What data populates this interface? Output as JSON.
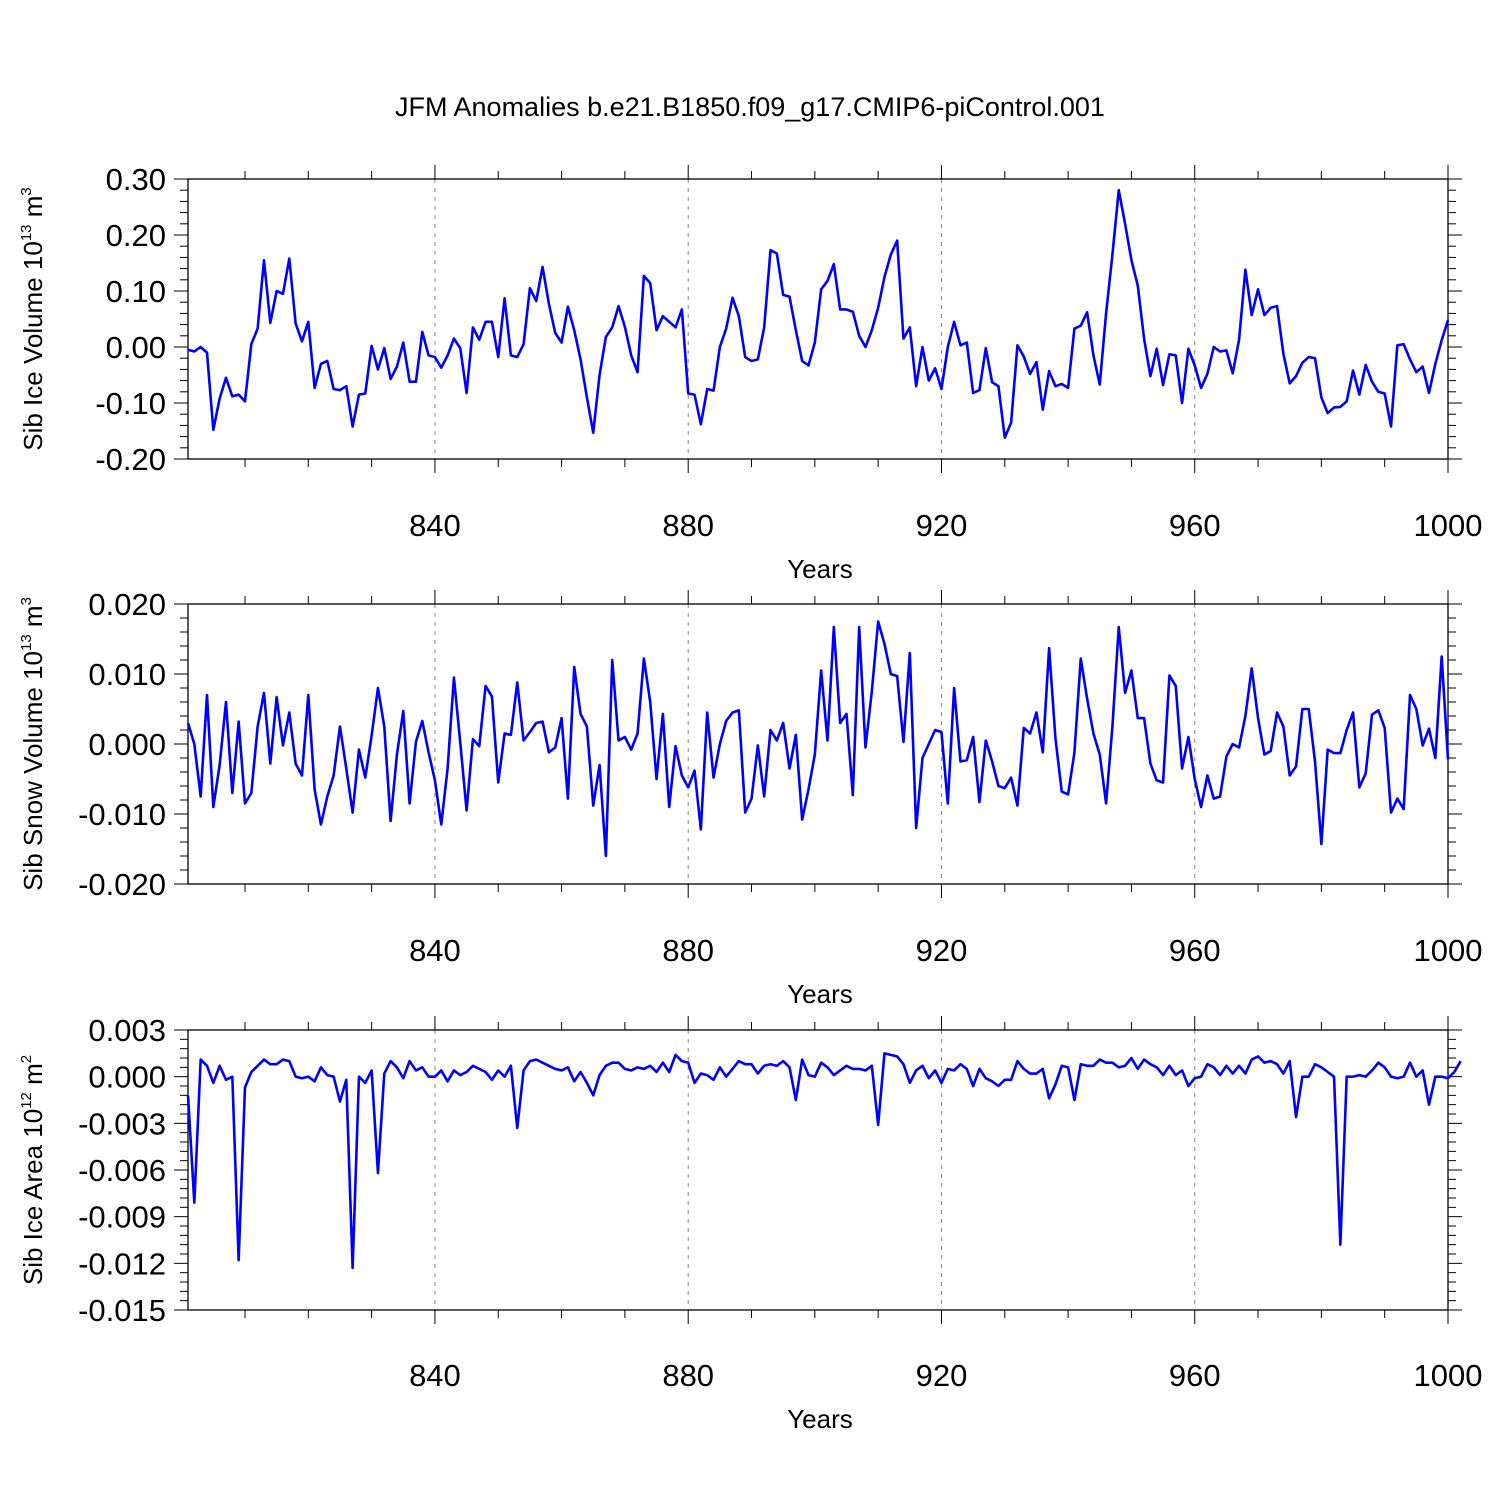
{
  "figure": {
    "title": "JFM Anomalies b.e21.B1850.f09_g17.CMIP6-piControl.001",
    "line_color": "#0000ff",
    "grid_color": "#888888"
  },
  "chart_data": [
    {
      "type": "line",
      "title": "",
      "xlabel": "Years",
      "ylabel_main": "Sib Ice Volume 10",
      "ylabel_exp": "13",
      "ylabel_unit": " m",
      "ylabel_unit_exp": "3",
      "xlim": [
        801,
        1000
      ],
      "ylim": [
        -0.2,
        0.3
      ],
      "x_start": 801,
      "x_ticks": [
        840,
        880,
        920,
        960,
        1000
      ],
      "y_ticks": [
        -0.2,
        -0.1,
        0.0,
        0.1,
        0.2,
        0.3
      ],
      "y_tick_labels": [
        "-0.20",
        "-0.10",
        "0.00",
        "0.10",
        "0.20",
        "0.30"
      ],
      "grid": "vertical dashed at labeled x ticks",
      "series": [
        {
          "values": [
            -0.005,
            -0.008,
            0.0,
            -0.01,
            -0.148,
            -0.092,
            -0.055,
            -0.088,
            -0.085,
            -0.097,
            0.005,
            0.033,
            0.155,
            0.043,
            0.1,
            0.095,
            0.158,
            0.042,
            0.01,
            0.045,
            -0.073,
            -0.03,
            -0.025,
            -0.075,
            -0.077,
            -0.07,
            -0.142,
            -0.085,
            -0.083,
            0.002,
            -0.04,
            -0.002,
            -0.057,
            -0.035,
            0.008,
            -0.062,
            -0.062,
            0.027,
            -0.015,
            -0.018,
            -0.037,
            -0.015,
            0.015,
            -0.002,
            -0.082,
            0.035,
            0.013,
            0.045,
            0.045,
            -0.018,
            0.087,
            -0.015,
            -0.018,
            0.005,
            0.105,
            0.082,
            0.143,
            0.077,
            0.025,
            0.008,
            0.072,
            0.03,
            -0.022,
            -0.09,
            -0.153,
            -0.05,
            0.018,
            0.035,
            0.073,
            0.036,
            -0.015,
            -0.045,
            0.127,
            0.114,
            0.03,
            0.055,
            0.045,
            0.035,
            0.067,
            -0.083,
            -0.085,
            -0.138,
            -0.075,
            -0.078,
            0.0,
            0.033,
            0.088,
            0.055,
            -0.018,
            -0.025,
            -0.022,
            0.035,
            0.173,
            0.167,
            0.093,
            0.09,
            0.03,
            -0.025,
            -0.033,
            0.008,
            0.103,
            0.118,
            0.148,
            0.067,
            0.067,
            0.063,
            0.02,
            0.0,
            0.03,
            0.07,
            0.125,
            0.165,
            0.19,
            0.015,
            0.035,
            -0.07,
            0.0,
            -0.06,
            -0.038,
            -0.075,
            0.0,
            0.045,
            0.003,
            0.008,
            -0.082,
            -0.077,
            -0.002,
            -0.063,
            -0.07,
            -0.162,
            -0.135,
            0.003,
            -0.017,
            -0.048,
            -0.027,
            -0.112,
            -0.043,
            -0.07,
            -0.066,
            -0.073,
            0.033,
            0.038,
            0.062,
            -0.015,
            -0.067,
            0.06,
            0.165,
            0.28,
            0.22,
            0.155,
            0.11,
            0.015,
            -0.052,
            -0.003,
            -0.068,
            -0.013,
            -0.015,
            -0.1,
            -0.003,
            -0.033,
            -0.073,
            -0.048,
            0.0,
            -0.008,
            -0.006,
            -0.047,
            0.013,
            0.138,
            0.057,
            0.103,
            0.057,
            0.07,
            0.073,
            -0.012,
            -0.065,
            -0.052,
            -0.028,
            -0.018,
            -0.02,
            -0.09,
            -0.118,
            -0.108,
            -0.107,
            -0.097,
            -0.042,
            -0.085,
            -0.032,
            -0.062,
            -0.08,
            -0.083,
            -0.142,
            0.003,
            0.005,
            -0.022,
            -0.045,
            -0.035,
            -0.082,
            -0.03,
            0.012,
            0.048
          ]
        }
      ]
    },
    {
      "type": "line",
      "title": "",
      "xlabel": "Years",
      "ylabel_main": "Sib Snow Volume 10",
      "ylabel_exp": "13",
      "ylabel_unit": " m",
      "ylabel_unit_exp": "3",
      "xlim": [
        801,
        1000
      ],
      "ylim": [
        -0.02,
        0.02
      ],
      "x_start": 801,
      "x_ticks": [
        840,
        880,
        920,
        960,
        1000
      ],
      "y_ticks": [
        -0.02,
        -0.01,
        0.0,
        0.01,
        0.02
      ],
      "y_tick_labels": [
        "-0.020",
        "-0.010",
        "0.000",
        "0.010",
        "0.020"
      ],
      "grid": "vertical dashed at labeled x ticks",
      "series": [
        {
          "values": [
            0.003,
            0.0,
            -0.0075,
            0.007,
            -0.009,
            -0.003,
            0.006,
            -0.007,
            0.0032,
            -0.0085,
            -0.007,
            0.0025,
            0.0073,
            -0.0028,
            0.0067,
            -0.0002,
            0.0045,
            -0.0028,
            -0.0045,
            0.007,
            -0.0065,
            -0.0115,
            -0.0075,
            -0.0045,
            0.0025,
            -0.0035,
            -0.0098,
            -0.0008,
            -0.0048,
            0.0012,
            0.008,
            0.0025,
            -0.011,
            -0.0015,
            0.0047,
            -0.0085,
            0.0003,
            0.0033,
            -0.0012,
            -0.0052,
            -0.0115,
            -0.0035,
            0.0095,
            0.0002,
            -0.0095,
            0.0007,
            -0.0003,
            0.0083,
            0.0068,
            -0.0055,
            0.0015,
            0.0013,
            0.0088,
            0.0005,
            0.0017,
            0.003,
            0.0032,
            -0.0012,
            -0.0005,
            0.0037,
            -0.0078,
            0.011,
            0.0043,
            0.0025,
            -0.0088,
            -0.003,
            -0.016,
            0.012,
            0.0005,
            0.001,
            -0.0008,
            0.0015,
            0.0122,
            0.006,
            -0.005,
            0.0043,
            -0.009,
            -0.0003,
            -0.0045,
            -0.0062,
            -0.0038,
            -0.0122,
            0.0045,
            -0.0048,
            0.0,
            0.0033,
            0.0045,
            0.0048,
            -0.0098,
            -0.0078,
            -0.0002,
            -0.0075,
            0.002,
            0.0005,
            0.003,
            -0.0035,
            0.0013,
            -0.0108,
            -0.0065,
            -0.0015,
            0.0105,
            0.0005,
            0.0167,
            0.003,
            0.0043,
            -0.0073,
            0.0167,
            -0.0005,
            0.0075,
            0.0175,
            0.0143,
            0.01,
            0.0097,
            0.0003,
            0.013,
            -0.012,
            -0.002,
            0.0,
            0.002,
            0.0017,
            -0.0085,
            0.008,
            -0.0025,
            -0.0023,
            0.001,
            -0.0083,
            0.0005,
            -0.0025,
            -0.006,
            -0.0063,
            -0.0048,
            -0.0088,
            0.0023,
            0.0015,
            0.0045,
            -0.0012,
            0.0137,
            0.0008,
            -0.0068,
            -0.0072,
            -0.0012,
            0.0122,
            0.0065,
            0.0015,
            -0.0015,
            -0.0085,
            0.0025,
            0.0167,
            0.0073,
            0.0105,
            0.0037,
            0.0037,
            -0.0028,
            -0.0052,
            -0.0055,
            0.0098,
            0.0083,
            -0.0035,
            0.001,
            -0.005,
            -0.009,
            -0.0045,
            -0.0078,
            -0.0075,
            -0.0018,
            0.0,
            -0.0005,
            0.004,
            0.0108,
            0.0037,
            -0.0015,
            -0.001,
            0.0045,
            0.0025,
            -0.0045,
            -0.0032,
            0.005,
            0.005,
            -0.0025,
            -0.0143,
            -0.0008,
            -0.0013,
            -0.0013,
            0.002,
            0.0045,
            -0.0062,
            -0.0042,
            0.0042,
            0.0048,
            0.0023,
            -0.0098,
            -0.0078,
            -0.0093,
            0.007,
            0.005,
            -0.0002,
            0.0022,
            -0.002,
            0.0125,
            -0.0022
          ]
        }
      ]
    },
    {
      "type": "line",
      "title": "",
      "xlabel": "Years",
      "ylabel_main": "Sib Ice Area 10",
      "ylabel_exp": "12",
      "ylabel_unit": " m",
      "ylabel_unit_exp": "2",
      "xlim": [
        801,
        1000
      ],
      "ylim": [
        -0.015,
        0.003
      ],
      "x_start": 801,
      "x_ticks": [
        840,
        880,
        920,
        960,
        1000
      ],
      "y_ticks": [
        -0.015,
        -0.012,
        -0.009,
        -0.006,
        -0.003,
        0.0,
        0.003
      ],
      "y_tick_labels": [
        "-0.015",
        "-0.012",
        "-0.009",
        "-0.006",
        "-0.003",
        "0.000",
        "0.003"
      ],
      "grid": "vertical dashed at labeled x ticks",
      "series": [
        {
          "values": [
            -0.0012,
            -0.0081,
            0.0011,
            0.0007,
            -0.0004,
            0.0007,
            -0.0002,
            0.0,
            -0.0118,
            -0.0007,
            0.0003,
            0.0007,
            0.0011,
            0.0008,
            0.0008,
            0.0011,
            0.001,
            0.0,
            -0.0001,
            0.0,
            -0.0003,
            0.0006,
            0.0001,
            0.0,
            -0.0016,
            -0.0002,
            -0.0123,
            0.0,
            -0.0004,
            0.0004,
            -0.0062,
            0.0002,
            0.001,
            0.0006,
            -0.0001,
            0.001,
            0.0004,
            0.0006,
            0.0,
            0.0,
            0.0004,
            -0.0003,
            0.0004,
            0.0001,
            0.0003,
            0.0007,
            0.0005,
            0.0003,
            -0.0002,
            0.0004,
            0.0,
            0.0007,
            -0.0033,
            0.0004,
            0.001,
            0.0011,
            0.0009,
            0.0007,
            0.0005,
            0.0004,
            0.0006,
            -0.0003,
            0.0003,
            -0.0004,
            -0.0012,
            0.0001,
            0.0007,
            0.0009,
            0.0009,
            0.0005,
            0.0004,
            0.0006,
            0.0005,
            0.0007,
            0.0003,
            0.0009,
            0.0003,
            0.0014,
            0.001,
            0.0009,
            -0.0004,
            0.0002,
            0.0001,
            -0.0002,
            0.0006,
            0.0,
            0.0005,
            0.001,
            0.0008,
            0.0008,
            0.0002,
            0.0007,
            0.0008,
            0.0007,
            0.001,
            0.0006,
            -0.0015,
            0.0011,
            0.0001,
            0.0,
            0.0009,
            0.0006,
            0.0001,
            0.0004,
            0.0007,
            0.0005,
            0.0005,
            0.0004,
            0.0007,
            -0.0031,
            0.0015,
            0.0014,
            0.0013,
            0.0008,
            -0.0004,
            0.0004,
            0.0007,
            -0.0001,
            0.0004,
            -0.0004,
            0.0005,
            0.0004,
            0.0008,
            0.0005,
            -0.0006,
            0.0005,
            -0.0001,
            -0.0003,
            -0.0006,
            -0.0002,
            -0.0002,
            0.001,
            0.0005,
            0.0002,
            0.0002,
            0.0005,
            -0.0014,
            -0.0005,
            0.0007,
            0.0006,
            -0.0015,
            0.0008,
            0.0007,
            0.0007,
            0.0011,
            0.0009,
            0.0009,
            0.0006,
            0.0007,
            0.0012,
            0.0005,
            0.0011,
            0.0008,
            0.0006,
            0.0001,
            0.0007,
            0.0001,
            0.0004,
            -0.0006,
            -0.0001,
            0.0,
            0.0008,
            0.0006,
            0.0001,
            0.0007,
            0.0002,
            0.0007,
            0.0002,
            0.0011,
            0.0013,
            0.0009,
            0.001,
            0.0008,
            0.0002,
            0.001,
            -0.0026,
            0.0,
            0.0,
            0.0008,
            0.0006,
            0.0003,
            0.0,
            -0.0108,
            0.0,
            0.0,
            0.0001,
            0.0,
            0.0004,
            0.0009,
            0.0006,
            0.0,
            -0.0001,
            0.0,
            0.0009,
            0.0,
            0.0004,
            -0.0018,
            0.0,
            0.0,
            -0.0001,
            0.0003,
            0.001
          ]
        }
      ]
    }
  ]
}
